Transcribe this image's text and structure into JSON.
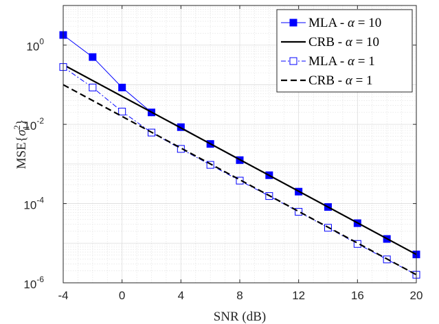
{
  "chart_data": {
    "type": "line",
    "title": "",
    "xlabel": "SNR (dB)",
    "ylabel": "MSE{σ̂₁²}",
    "ylabel_parts": {
      "prefix": "MSE{",
      "var": "σ",
      "sub": "1",
      "sup": "2",
      "suffix": "}"
    },
    "x_scale": "linear",
    "y_scale": "log",
    "xlim": [
      -4,
      20
    ],
    "ylim": [
      1e-06,
      10
    ],
    "x_ticks": [
      -4,
      0,
      4,
      8,
      12,
      16,
      20
    ],
    "x_tick_labels": [
      "-4",
      "0",
      "4",
      "8",
      "12",
      "16",
      "20"
    ],
    "y_ticks": [
      1e-06,
      0.0001,
      0.01,
      1
    ],
    "y_tick_labels": [
      {
        "base": "10",
        "exp": "-6"
      },
      {
        "base": "10",
        "exp": "-4"
      },
      {
        "base": "10",
        "exp": "-2"
      },
      {
        "base": "10",
        "exp": "0"
      }
    ],
    "grid": true,
    "minor_grid": true,
    "legend_position": "top-right",
    "series": [
      {
        "name": "MLA - α = 10",
        "legend": {
          "prefix": "MLA - ",
          "alpha": "α",
          "suffix": " = 10"
        },
        "color": "#0000ff",
        "line_style": "solid",
        "marker": "filled-square",
        "x": [
          -4,
          -2,
          0,
          2,
          4,
          6,
          8,
          10,
          12,
          14,
          16,
          18,
          20
        ],
        "y": [
          1.8,
          0.5,
          0.085,
          0.02,
          0.0085,
          0.0032,
          0.00125,
          0.00052,
          0.0002,
          8.2e-05,
          3.2e-05,
          1.28e-05,
          5.2e-06
        ]
      },
      {
        "name": "CRB - α = 10",
        "legend": {
          "prefix": "CRB - ",
          "alpha": "α",
          "suffix": " = 10"
        },
        "color": "#000000",
        "line_style": "solid",
        "marker": "none",
        "x": [
          -4,
          20
        ],
        "y": [
          0.32,
          5.2e-06
        ]
      },
      {
        "name": "MLA - α = 1",
        "legend": {
          "prefix": "MLA - ",
          "alpha": "α",
          "suffix": " = 1"
        },
        "color": "#0000ff",
        "line_style": "dashdot",
        "marker": "open-square",
        "x": [
          -4,
          -2,
          0,
          2,
          4,
          6,
          8,
          10,
          12,
          14,
          16,
          18,
          20
        ],
        "y": [
          0.28,
          0.085,
          0.021,
          0.0062,
          0.0024,
          0.00095,
          0.00038,
          0.000155,
          6.2e-05,
          2.45e-05,
          9.6e-06,
          3.9e-06,
          1.6e-06
        ]
      },
      {
        "name": "CRB - α = 1",
        "legend": {
          "prefix": "CRB - ",
          "alpha": "α",
          "suffix": " = 1"
        },
        "color": "#000000",
        "line_style": "dashed",
        "marker": "none",
        "x": [
          -4,
          20
        ],
        "y": [
          0.1,
          1.6e-06
        ]
      }
    ]
  }
}
